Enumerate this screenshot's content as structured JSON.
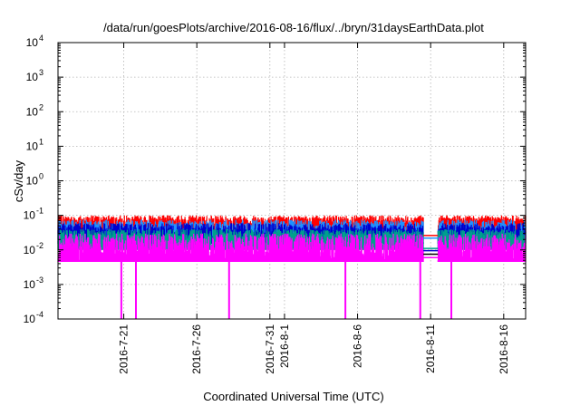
{
  "chart_data": {
    "type": "line",
    "title": "/data/run/goesPlots/archive/2016-08-16/flux/../bryn/31daysEarthData.plot",
    "xlabel": "Coordinated Universal Time (UTC)",
    "ylabel": "cSv/day",
    "yscale": "log",
    "ylim": [
      0.0001,
      10000
    ],
    "xlim": [
      "2016-07-16T12:00",
      "2016-08-17T12:00"
    ],
    "grid": true,
    "y_ticks": [
      {
        "value": 0.0001,
        "base": "10",
        "exp": "-4"
      },
      {
        "value": 0.001,
        "base": "10",
        "exp": "-3"
      },
      {
        "value": 0.01,
        "base": "10",
        "exp": "-2"
      },
      {
        "value": 0.1,
        "base": "10",
        "exp": "-1"
      },
      {
        "value": 1,
        "base": "10",
        "exp": "0"
      },
      {
        "value": 10,
        "base": "10",
        "exp": "1"
      },
      {
        "value": 100,
        "base": "10",
        "exp": "2"
      },
      {
        "value": 1000,
        "base": "10",
        "exp": "3"
      },
      {
        "value": 10000,
        "base": "10",
        "exp": "4"
      }
    ],
    "x_ticks": [
      {
        "date": "2016-07-21",
        "label": "2016-7-21"
      },
      {
        "date": "2016-07-26",
        "label": "2016-7-26"
      },
      {
        "date": "2016-07-31",
        "label": "2016-7-31"
      },
      {
        "date": "2016-08-01",
        "label": "2016-8-1"
      },
      {
        "date": "2016-08-06",
        "label": "2016-8-6"
      },
      {
        "date": "2016-08-11",
        "label": "2016-8-11"
      },
      {
        "date": "2016-08-16",
        "label": "2016-8-16"
      }
    ],
    "data_gap": {
      "start": "2016-08-10T12:00",
      "end": "2016-08-11T12:00",
      "levels": [
        0.026,
        0.022,
        0.011,
        0.0095,
        0.0075,
        0.006
      ]
    },
    "series": [
      {
        "color": "#ff0000",
        "typical": 0.07,
        "low": 0.03,
        "high": 0.1
      },
      {
        "color": "#1e90ff",
        "typical": 0.045,
        "low": 0.02,
        "high": 0.075
      },
      {
        "color": "#0000cd",
        "typical": 0.035,
        "low": 0.015,
        "high": 0.06
      },
      {
        "color": "#00a08c",
        "typical": 0.025,
        "low": 0.01,
        "high": 0.04
      },
      {
        "color": "#ff00ff",
        "typical": 0.012,
        "low": 0.0045,
        "high": 0.03
      }
    ],
    "dropouts": [
      {
        "date": "2016-07-20T20:00",
        "value": 0.0001
      },
      {
        "date": "2016-07-21T20:00",
        "value": 0.0001
      },
      {
        "date": "2016-07-28T05:00",
        "value": 0.0001
      },
      {
        "date": "2016-08-05T04:00",
        "value": 0.0001
      },
      {
        "date": "2016-08-10T07:00",
        "value": 0.0001
      },
      {
        "date": "2016-08-12T10:00",
        "value": 0.0001
      }
    ]
  }
}
